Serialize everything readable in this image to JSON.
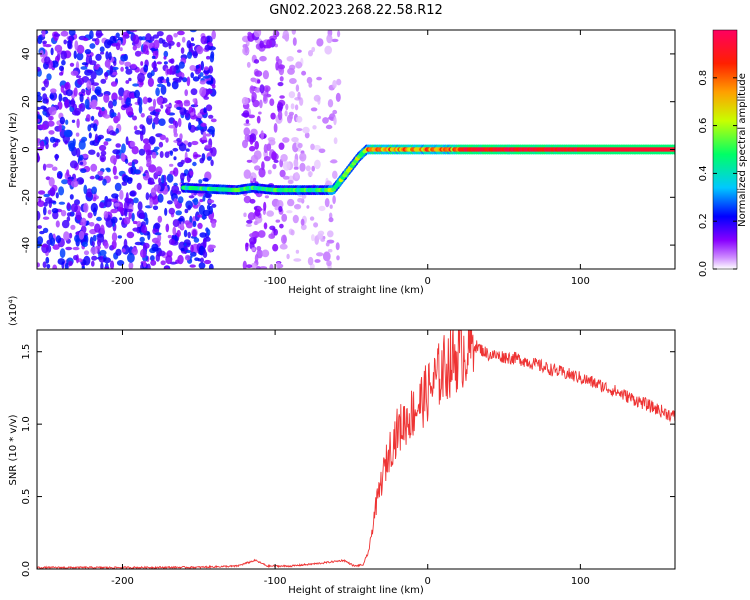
{
  "title": "GN02.2023.268.22.58.R12",
  "chart_data": [
    {
      "type": "heatmap",
      "xlabel": "Height of straight line (km)",
      "ylabel": "Frequency (Hz)",
      "xlim": [
        -256,
        162
      ],
      "ylim": [
        -50,
        50
      ],
      "xticks": [
        -200,
        -100,
        0,
        100
      ],
      "yticks": [
        -40,
        -20,
        0,
        20,
        40
      ],
      "colorbar": {
        "label": "Normalized spectral amplitude",
        "range": [
          0,
          1
        ],
        "ticks": [
          "0.0",
          "0.2",
          "0.4",
          "0.6",
          "0.8"
        ],
        "colors": [
          "#ffffff",
          "#cc88ff",
          "#8800ff",
          "#0000ff",
          "#00c8ff",
          "#00ff66",
          "#c8ff00",
          "#ffa000",
          "#ff2000",
          "#ff0060"
        ]
      },
      "ridge": [
        {
          "x": -160,
          "y": -16
        },
        {
          "x": -125,
          "y": -17
        },
        {
          "x": -115,
          "y": -16
        },
        {
          "x": -100,
          "y": -17
        },
        {
          "x": -62,
          "y": -17
        },
        {
          "x": -45,
          "y": -3
        },
        {
          "x": -40,
          "y": 0
        },
        {
          "x": 0,
          "y": 0
        },
        {
          "x": 162,
          "y": 0
        }
      ],
      "noise_regions": [
        {
          "x": [
            -256,
            -140
          ],
          "amplitude": 0.22
        },
        {
          "x": [
            -120,
            -95
          ],
          "amplitude": 0.12
        },
        {
          "x": [
            -95,
            -58
          ],
          "amplitude": 0.06
        }
      ]
    },
    {
      "type": "line",
      "xlabel": "Height of straight line (km)",
      "ylabel": "SNR (10 * v/v)",
      "scale_label": "(x10⁴)",
      "xlim": [
        -256,
        162
      ],
      "ylim": [
        0,
        1.65
      ],
      "xticks": [
        -200,
        -100,
        0,
        100
      ],
      "yticks": [
        "0.0",
        "0.5",
        "1.0",
        "1.5"
      ],
      "series": [
        {
          "color": "#ee3333",
          "x": [
            -256,
            -200,
            -150,
            -125,
            -113,
            -105,
            -90,
            -70,
            -55,
            -48,
            -42,
            -38,
            -35,
            -30,
            -25,
            -20,
            -10,
            0,
            10,
            20,
            30,
            40,
            60,
            80,
            100,
            120,
            140,
            162
          ],
          "y": [
            0.01,
            0.01,
            0.012,
            0.02,
            0.06,
            0.02,
            0.02,
            0.04,
            0.06,
            0.02,
            0.03,
            0.15,
            0.38,
            0.62,
            0.82,
            0.95,
            1.08,
            1.22,
            1.38,
            1.48,
            1.55,
            1.48,
            1.45,
            1.38,
            1.32,
            1.24,
            1.15,
            1.05
          ]
        }
      ]
    }
  ]
}
